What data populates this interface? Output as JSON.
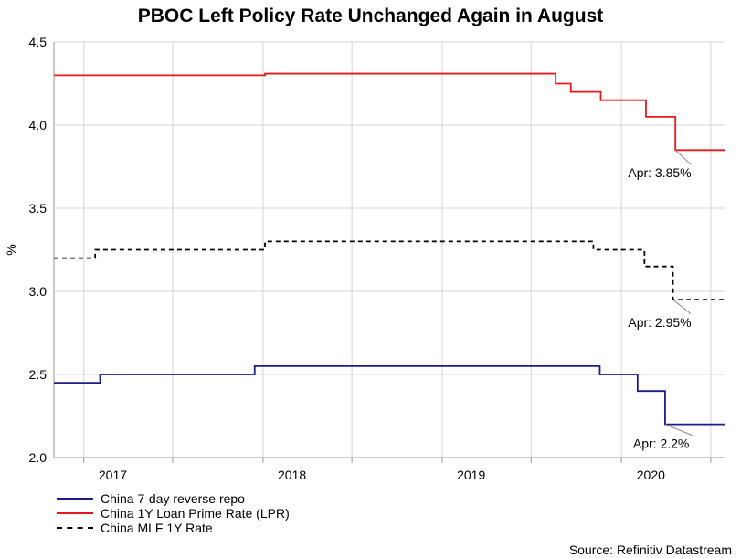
{
  "chart_data": {
    "type": "line",
    "title": "PBOC Left Policy Rate Unchanged Again in August",
    "ylabel": "%",
    "ylim": [
      2.0,
      4.5
    ],
    "yticks": [
      "2.0",
      "2.5",
      "3.0",
      "3.5",
      "4.0",
      "4.5"
    ],
    "xlim": [
      "2016-11-01",
      "2020-07-31"
    ],
    "x_tick_labels": [
      {
        "date": "2017-03-01",
        "label": "2017"
      },
      {
        "date": "2018-03-01",
        "label": "2018"
      },
      {
        "date": "2019-03-01",
        "label": "2019"
      },
      {
        "date": "2020-03-01",
        "label": "2020"
      }
    ],
    "x_minor_ticks": [
      "2017-01-01",
      "2017-07-01",
      "2018-01-01",
      "2018-07-01",
      "2019-01-01",
      "2019-07-01",
      "2020-01-01",
      "2020-07-01"
    ],
    "grid": true,
    "legend_position": "bottom-left",
    "series": [
      {
        "name": "China 7-day reverse repo",
        "color": "#1c1c8c",
        "style": "solid",
        "steps": [
          {
            "date": "2016-11-01",
            "value": 2.45
          },
          {
            "date": "2017-02-03",
            "value": 2.5
          },
          {
            "date": "2017-12-15",
            "value": 2.55
          },
          {
            "date": "2019-11-18",
            "value": 2.5
          },
          {
            "date": "2020-02-03",
            "value": 2.4
          },
          {
            "date": "2020-03-30",
            "value": 2.2
          }
        ],
        "end": "2020-07-31"
      },
      {
        "name": "China 1Y Loan Prime Rate (LPR)",
        "color": "#e8191c",
        "style": "solid",
        "steps": [
          {
            "date": "2016-11-01",
            "value": 4.3
          },
          {
            "date": "2018-01-05",
            "value": 4.31
          },
          {
            "date": "2019-08-20",
            "value": 4.25
          },
          {
            "date": "2019-09-20",
            "value": 4.2
          },
          {
            "date": "2019-11-20",
            "value": 4.15
          },
          {
            "date": "2020-02-20",
            "value": 4.05
          },
          {
            "date": "2020-04-20",
            "value": 3.85
          }
        ],
        "end": "2020-07-31"
      },
      {
        "name": "China MLF 1Y Rate",
        "color": "#000000",
        "style": "dashed",
        "steps": [
          {
            "date": "2016-11-01",
            "value": 3.2
          },
          {
            "date": "2017-01-24",
            "value": 3.25
          },
          {
            "date": "2018-01-05",
            "value": 3.3
          },
          {
            "date": "2019-11-05",
            "value": 3.25
          },
          {
            "date": "2020-02-17",
            "value": 3.15
          },
          {
            "date": "2020-04-15",
            "value": 2.95
          }
        ],
        "end": "2020-07-31"
      }
    ],
    "annotations": [
      {
        "text": "Apr: 3.85%",
        "date": "2020-04-20",
        "value": 3.85,
        "label_date": "2020-01-12",
        "label_value": 3.72
      },
      {
        "text": "Apr: 2.95%",
        "date": "2020-04-15",
        "value": 2.95,
        "label_date": "2020-01-12",
        "label_value": 2.82
      },
      {
        "text": "Apr: 2.2%",
        "date": "2020-03-30",
        "value": 2.2,
        "label_date": "2020-01-15",
        "label_value": 2.09
      }
    ],
    "source": "Source: Refinitiv Datastream"
  }
}
